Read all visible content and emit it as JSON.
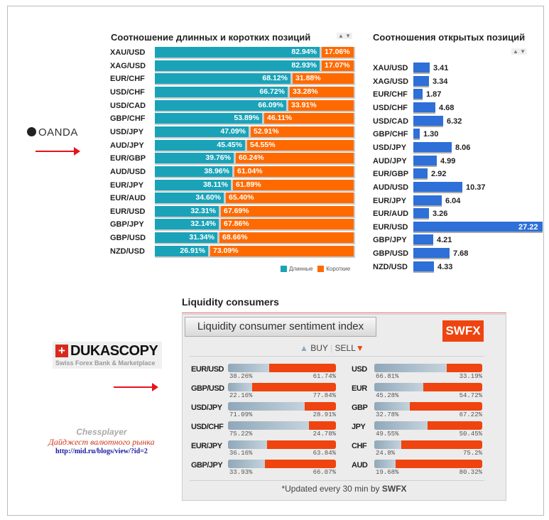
{
  "oanda": {
    "logo": "OANDA",
    "title_ratio": "Соотношение длинных и коротких позиций",
    "title_open": "Соотношения открытых позиций",
    "legend_long": "Длинные",
    "legend_short": "Короткие",
    "colors": {
      "long": "#1aa3b8",
      "short": "#ff6a00",
      "open": "#2e6fd8"
    },
    "ratio_rows": [
      {
        "pair": "XAU/USD",
        "long": 82.94,
        "long_label": "82.94%",
        "short_label": "17.06%"
      },
      {
        "pair": "XAG/USD",
        "long": 82.93,
        "long_label": "82.93%",
        "short_label": "17.07%"
      },
      {
        "pair": "EUR/CHF",
        "long": 68.12,
        "long_label": "68.12%",
        "short_label": "31.88%"
      },
      {
        "pair": "USD/CHF",
        "long": 66.72,
        "long_label": "66.72%",
        "short_label": "33.28%"
      },
      {
        "pair": "USD/CAD",
        "long": 66.09,
        "long_label": "66.09%",
        "short_label": "33.91%"
      },
      {
        "pair": "GBP/CHF",
        "long": 53.89,
        "long_label": "53.89%",
        "short_label": "46.11%"
      },
      {
        "pair": "USD/JPY",
        "long": 47.09,
        "long_label": "47.09%",
        "short_label": "52.91%"
      },
      {
        "pair": "AUD/JPY",
        "long": 45.45,
        "long_label": "45.45%",
        "short_label": "54.55%"
      },
      {
        "pair": "EUR/GBP",
        "long": 39.76,
        "long_label": "39.76%",
        "short_label": "60.24%"
      },
      {
        "pair": "AUD/USD",
        "long": 38.96,
        "long_label": "38.96%",
        "short_label": "61.04%"
      },
      {
        "pair": "EUR/JPY",
        "long": 38.11,
        "long_label": "38.11%",
        "short_label": "61.89%"
      },
      {
        "pair": "EUR/AUD",
        "long": 34.6,
        "long_label": "34.60%",
        "short_label": "65.40%"
      },
      {
        "pair": "EUR/USD",
        "long": 32.31,
        "long_label": "32.31%",
        "short_label": "67.69%"
      },
      {
        "pair": "GBP/JPY",
        "long": 32.14,
        "long_label": "32.14%",
        "short_label": "67.86%"
      },
      {
        "pair": "GBP/USD",
        "long": 31.34,
        "long_label": "31.34%",
        "short_label": "68.66%"
      },
      {
        "pair": "NZD/USD",
        "long": 26.91,
        "long_label": "26.91%",
        "short_label": "73.09%"
      }
    ],
    "open_rows": [
      {
        "pair": "XAU/USD",
        "value": 3.41,
        "label": "3.41"
      },
      {
        "pair": "XAG/USD",
        "value": 3.34,
        "label": "3.34"
      },
      {
        "pair": "EUR/CHF",
        "value": 1.87,
        "label": "1.87"
      },
      {
        "pair": "USD/CHF",
        "value": 4.68,
        "label": "4.68"
      },
      {
        "pair": "USD/CAD",
        "value": 6.32,
        "label": "6.32"
      },
      {
        "pair": "GBP/CHF",
        "value": 1.3,
        "label": "1.30"
      },
      {
        "pair": "USD/JPY",
        "value": 8.06,
        "label": "8.06"
      },
      {
        "pair": "AUD/JPY",
        "value": 4.99,
        "label": "4.99"
      },
      {
        "pair": "EUR/GBP",
        "value": 2.92,
        "label": "2.92"
      },
      {
        "pair": "AUD/USD",
        "value": 10.37,
        "label": "10.37"
      },
      {
        "pair": "EUR/JPY",
        "value": 6.04,
        "label": "6.04"
      },
      {
        "pair": "EUR/AUD",
        "value": 3.26,
        "label": "3.26"
      },
      {
        "pair": "EUR/USD",
        "value": 27.22,
        "label": "27.22"
      },
      {
        "pair": "GBP/JPY",
        "value": 4.21,
        "label": "4.21"
      },
      {
        "pair": "GBP/USD",
        "value": 7.68,
        "label": "7.68"
      },
      {
        "pair": "NZD/USD",
        "value": 4.33,
        "label": "4.33"
      }
    ]
  },
  "dukascopy": {
    "logo": "DUKASCOPY",
    "logo_sub": "Swiss Forex Bank & Marketplace",
    "section_title": "Liquidity consumers",
    "tab": "Liquidity consumer sentiment index",
    "badge": "SWFX",
    "buy": "BUY",
    "sell": "SELL",
    "footer_prefix": "*Updated every 30 min by ",
    "footer_brand": "SWFX",
    "left": [
      {
        "name": "EUR/USD",
        "buy": 38.26,
        "buy_label": "38.26%",
        "sell_label": "61.74%"
      },
      {
        "name": "GBP/USD",
        "buy": 22.16,
        "buy_label": "22.16%",
        "sell_label": "77.84%"
      },
      {
        "name": "USD/JPY",
        "buy": 71.09,
        "buy_label": "71.09%",
        "sell_label": "28.91%"
      },
      {
        "name": "USD/CHF",
        "buy": 75.22,
        "buy_label": "75.22%",
        "sell_label": "24.78%"
      },
      {
        "name": "EUR/JPY",
        "buy": 36.16,
        "buy_label": "36.16%",
        "sell_label": "63.84%"
      },
      {
        "name": "GBP/JPY",
        "buy": 33.93,
        "buy_label": "33.93%",
        "sell_label": "66.07%"
      }
    ],
    "right": [
      {
        "name": "USD",
        "buy": 66.81,
        "buy_label": "66.81%",
        "sell_label": "33.19%"
      },
      {
        "name": "EUR",
        "buy": 45.28,
        "buy_label": "45.28%",
        "sell_label": "54.72%"
      },
      {
        "name": "GBP",
        "buy": 32.78,
        "buy_label": "32.78%",
        "sell_label": "67.22%"
      },
      {
        "name": "JPY",
        "buy": 49.55,
        "buy_label": "49.55%",
        "sell_label": "50.45%"
      },
      {
        "name": "CHF",
        "buy": 24.8,
        "buy_label": "24.8%",
        "sell_label": "75.2%"
      },
      {
        "name": "AUD",
        "buy": 19.68,
        "buy_label": "19.68%",
        "sell_label": "80.32%"
      }
    ]
  },
  "watermark": {
    "author": "Chessplayer",
    "subtitle": "Дайджест валютного рынка",
    "link": "http://mid.ru/blogs/view/?id=2"
  }
}
